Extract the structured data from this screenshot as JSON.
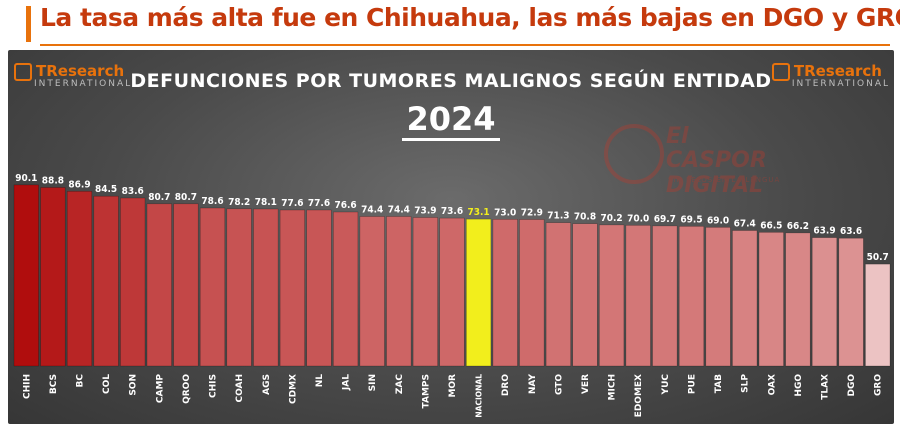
{
  "headline": "La tasa más alta fue en Chihuahua, las más bajas en DGO y GRO",
  "logo": {
    "brand": "TResearch",
    "sub": "INTERNATIONAL"
  },
  "watermark": {
    "line1": "El",
    "line2": "CASPOR DIGITAL",
    "line3": "SIN PELOS EN LA LENGUA"
  },
  "colors": {
    "accent": "#e8720c",
    "headline": "#c53a0d",
    "national": "#f2ee1c",
    "high": "#b00d0d",
    "low": "#ecc3c3"
  },
  "chart_data": {
    "type": "bar",
    "title": "DEFUNCIONES POR TUMORES MALIGNOS SEGÚN ENTIDAD",
    "subtitle": "2024",
    "categories": [
      "CHIH",
      "BCS",
      "BC",
      "COL",
      "SON",
      "CAMP",
      "QROO",
      "CHIS",
      "COAH",
      "AGS",
      "CDMX",
      "NL",
      "JAL",
      "SIN",
      "ZAC",
      "TAMPS",
      "MOR",
      "NACIONAL",
      "DRO",
      "NAY",
      "GTO",
      "VER",
      "MICH",
      "EDOMEX",
      "YUC",
      "PUE",
      "TAB",
      "SLP",
      "OAX",
      "HGO",
      "TLAX",
      "DGO",
      "GRO"
    ],
    "values": [
      90.1,
      88.8,
      86.9,
      84.5,
      83.6,
      80.7,
      80.7,
      78.6,
      78.2,
      78.1,
      77.6,
      77.6,
      76.6,
      74.4,
      74.4,
      73.9,
      73.6,
      73.1,
      73.0,
      72.9,
      71.3,
      70.8,
      70.2,
      70.0,
      69.7,
      69.5,
      69.0,
      67.4,
      66.5,
      66.2,
      63.9,
      63.6,
      50.7
    ],
    "value_labels": [
      "90.1",
      "88.8",
      "86.9",
      "84.5",
      "83.6",
      "80.7",
      "80.7",
      "78.6",
      "78.2",
      "78.1",
      "77.6",
      "77.6",
      "76.6",
      "74.4",
      "74.4",
      "73.9",
      "73.6",
      "73.1",
      "73.0",
      "72.9",
      "71.3",
      "70.8",
      "70.2",
      "70.0",
      "69.7",
      "69.5",
      "69.0",
      "67.4",
      "66.5",
      "66.2",
      "63.9",
      "63.6",
      "50.7"
    ],
    "highlight": "NACIONAL",
    "grid": false,
    "legend": "none"
  }
}
